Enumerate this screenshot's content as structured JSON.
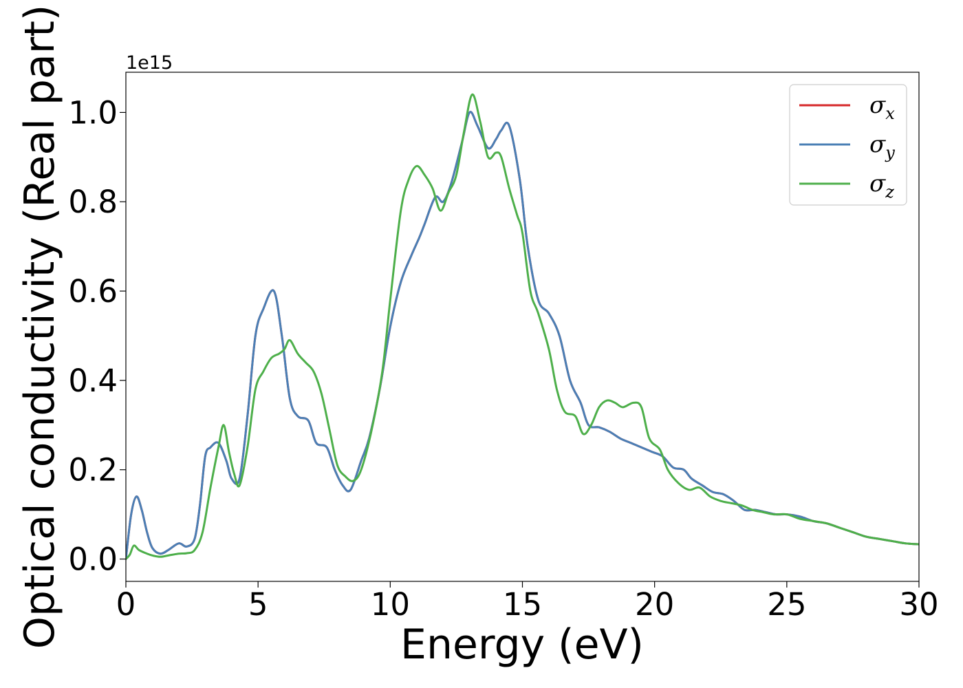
{
  "chart_data": {
    "type": "line",
    "title": "",
    "xlabel": "Energy (eV)",
    "ylabel": "Optical conductivity (Real part)",
    "y_offset_label": "1e15",
    "xlim": [
      0,
      30
    ],
    "ylim": [
      -0.05,
      1.09
    ],
    "xticks": [
      0,
      5,
      10,
      15,
      20,
      25,
      30
    ],
    "xtick_labels": [
      "0",
      "5",
      "10",
      "15",
      "20",
      "25",
      "30"
    ],
    "yticks": [
      0.0,
      0.2,
      0.4,
      0.6,
      0.8,
      1.0
    ],
    "ytick_labels": [
      "0.0",
      "0.2",
      "0.4",
      "0.6",
      "0.8",
      "1.0"
    ],
    "grid": false,
    "legend_position": "top-right",
    "series": [
      {
        "name": "σx",
        "legend_base": "σ",
        "legend_sub": "x",
        "color": "#d62728",
        "x": [
          0,
          0.2,
          0.4,
          0.6,
          0.8,
          1.0,
          1.3,
          1.6,
          2.0,
          2.3,
          2.6,
          2.8,
          3.0,
          3.2,
          3.5,
          3.8,
          4.0,
          4.3,
          4.6,
          4.9,
          5.2,
          5.6,
          5.9,
          6.2,
          6.5,
          6.9,
          7.2,
          7.6,
          7.9,
          8.2,
          8.5,
          8.9,
          9.2,
          9.6,
          10.0,
          10.4,
          10.8,
          11.1,
          11.3,
          11.7,
          12.0,
          12.3,
          12.7,
          13.0,
          13.3,
          13.7,
          14.0,
          14.2,
          14.5,
          14.9,
          15.2,
          15.6,
          16.0,
          16.4,
          16.8,
          17.2,
          17.5,
          17.9,
          18.3,
          18.7,
          19.1,
          19.5,
          19.9,
          20.3,
          20.7,
          21.1,
          21.4,
          21.8,
          22.2,
          22.6,
          23.0,
          23.4,
          23.8,
          24.2,
          24.6,
          25.0,
          25.5,
          26.0,
          26.5,
          27.0,
          27.5,
          28.0,
          28.5,
          29.0,
          29.5,
          30.0
        ],
        "y": [
          0.0,
          0.1,
          0.14,
          0.11,
          0.06,
          0.025,
          0.012,
          0.02,
          0.035,
          0.028,
          0.045,
          0.12,
          0.23,
          0.25,
          0.26,
          0.22,
          0.18,
          0.18,
          0.32,
          0.5,
          0.56,
          0.6,
          0.5,
          0.36,
          0.32,
          0.31,
          0.26,
          0.25,
          0.2,
          0.165,
          0.155,
          0.22,
          0.27,
          0.38,
          0.52,
          0.62,
          0.68,
          0.72,
          0.75,
          0.81,
          0.8,
          0.84,
          0.93,
          1.0,
          0.97,
          0.92,
          0.94,
          0.96,
          0.97,
          0.85,
          0.7,
          0.58,
          0.55,
          0.5,
          0.4,
          0.35,
          0.3,
          0.295,
          0.285,
          0.27,
          0.26,
          0.25,
          0.24,
          0.23,
          0.205,
          0.2,
          0.18,
          0.165,
          0.15,
          0.145,
          0.13,
          0.11,
          0.11,
          0.105,
          0.1,
          0.1,
          0.095,
          0.085,
          0.08,
          0.07,
          0.06,
          0.05,
          0.045,
          0.04,
          0.035,
          0.033
        ]
      },
      {
        "name": "σy",
        "legend_base": "σ",
        "legend_sub": "y",
        "color": "#4a7fb5",
        "x": [
          0,
          0.2,
          0.4,
          0.6,
          0.8,
          1.0,
          1.3,
          1.6,
          2.0,
          2.3,
          2.6,
          2.8,
          3.0,
          3.2,
          3.5,
          3.8,
          4.0,
          4.3,
          4.6,
          4.9,
          5.2,
          5.6,
          5.9,
          6.2,
          6.5,
          6.9,
          7.2,
          7.6,
          7.9,
          8.2,
          8.5,
          8.9,
          9.2,
          9.6,
          10.0,
          10.4,
          10.8,
          11.1,
          11.3,
          11.7,
          12.0,
          12.3,
          12.7,
          13.0,
          13.3,
          13.7,
          14.0,
          14.2,
          14.5,
          14.9,
          15.2,
          15.6,
          16.0,
          16.4,
          16.8,
          17.2,
          17.5,
          17.9,
          18.3,
          18.7,
          19.1,
          19.5,
          19.9,
          20.3,
          20.7,
          21.1,
          21.4,
          21.8,
          22.2,
          22.6,
          23.0,
          23.4,
          23.8,
          24.2,
          24.6,
          25.0,
          25.5,
          26.0,
          26.5,
          27.0,
          27.5,
          28.0,
          28.5,
          29.0,
          29.5,
          30.0
        ],
        "y": [
          0.0,
          0.1,
          0.14,
          0.11,
          0.06,
          0.025,
          0.012,
          0.02,
          0.035,
          0.028,
          0.045,
          0.12,
          0.23,
          0.25,
          0.26,
          0.22,
          0.18,
          0.18,
          0.32,
          0.5,
          0.56,
          0.6,
          0.5,
          0.36,
          0.32,
          0.31,
          0.26,
          0.25,
          0.2,
          0.165,
          0.155,
          0.22,
          0.27,
          0.38,
          0.52,
          0.62,
          0.68,
          0.72,
          0.75,
          0.81,
          0.8,
          0.84,
          0.93,
          1.0,
          0.97,
          0.92,
          0.94,
          0.96,
          0.97,
          0.85,
          0.7,
          0.58,
          0.55,
          0.5,
          0.4,
          0.35,
          0.3,
          0.295,
          0.285,
          0.27,
          0.26,
          0.25,
          0.24,
          0.23,
          0.205,
          0.2,
          0.18,
          0.165,
          0.15,
          0.145,
          0.13,
          0.11,
          0.11,
          0.105,
          0.1,
          0.1,
          0.095,
          0.085,
          0.08,
          0.07,
          0.06,
          0.05,
          0.045,
          0.04,
          0.035,
          0.033
        ]
      },
      {
        "name": "σz",
        "legend_base": "σ",
        "legend_sub": "z",
        "color": "#4daf4a",
        "x": [
          0,
          0.15,
          0.3,
          0.5,
          0.8,
          1.0,
          1.3,
          1.6,
          2.0,
          2.3,
          2.6,
          2.9,
          3.2,
          3.5,
          3.7,
          3.9,
          4.1,
          4.3,
          4.6,
          4.9,
          5.2,
          5.5,
          5.8,
          6.0,
          6.2,
          6.5,
          6.8,
          7.1,
          7.4,
          7.7,
          8.0,
          8.3,
          8.6,
          8.9,
          9.3,
          9.7,
          10.0,
          10.4,
          10.7,
          11.0,
          11.3,
          11.6,
          11.9,
          12.2,
          12.5,
          12.8,
          13.1,
          13.4,
          13.7,
          14.0,
          14.2,
          14.5,
          14.8,
          15.0,
          15.3,
          15.6,
          16.0,
          16.3,
          16.6,
          17.0,
          17.3,
          17.6,
          17.9,
          18.2,
          18.5,
          18.8,
          19.2,
          19.5,
          19.8,
          20.2,
          20.5,
          20.9,
          21.3,
          21.7,
          22.1,
          22.5,
          22.9,
          23.3,
          23.7,
          24.1,
          24.5,
          25.0,
          25.5,
          26.0,
          26.5,
          27.0,
          27.5,
          28.0,
          28.5,
          29.0,
          29.5,
          30.0
        ],
        "y": [
          0.0,
          0.01,
          0.03,
          0.02,
          0.012,
          0.008,
          0.005,
          0.008,
          0.012,
          0.013,
          0.02,
          0.06,
          0.16,
          0.25,
          0.3,
          0.24,
          0.19,
          0.165,
          0.25,
          0.38,
          0.42,
          0.45,
          0.46,
          0.47,
          0.49,
          0.46,
          0.44,
          0.42,
          0.37,
          0.29,
          0.21,
          0.185,
          0.175,
          0.2,
          0.29,
          0.42,
          0.58,
          0.78,
          0.85,
          0.88,
          0.86,
          0.83,
          0.78,
          0.82,
          0.86,
          0.96,
          1.04,
          0.98,
          0.9,
          0.91,
          0.9,
          0.83,
          0.77,
          0.73,
          0.6,
          0.55,
          0.47,
          0.38,
          0.33,
          0.32,
          0.28,
          0.3,
          0.34,
          0.355,
          0.35,
          0.34,
          0.35,
          0.34,
          0.27,
          0.245,
          0.2,
          0.17,
          0.155,
          0.16,
          0.14,
          0.13,
          0.125,
          0.12,
          0.11,
          0.105,
          0.1,
          0.1,
          0.09,
          0.085,
          0.08,
          0.07,
          0.06,
          0.05,
          0.045,
          0.04,
          0.035,
          0.033
        ]
      }
    ]
  }
}
